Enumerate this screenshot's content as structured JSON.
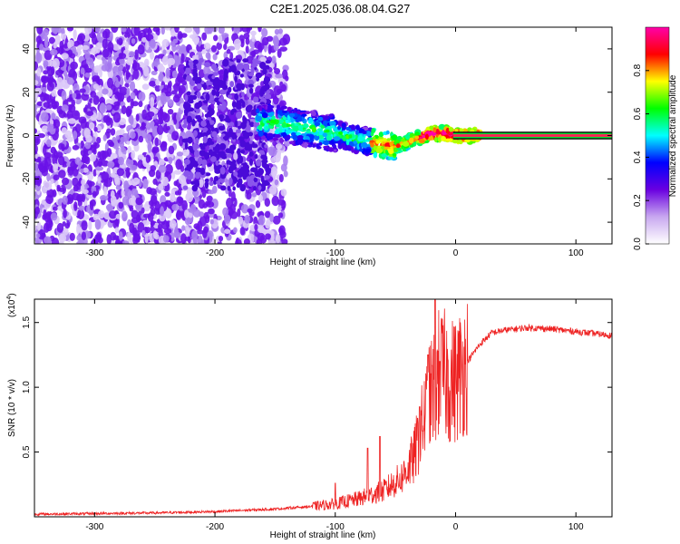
{
  "figure": {
    "title": "C2E1.2025.036.08.04.G27"
  },
  "chart_data": [
    {
      "type": "heatmap",
      "xlabel": "Height of straight line (km)",
      "ylabel": "Frequency (Hz)",
      "xlim": [
        -350,
        130
      ],
      "ylim": [
        -50,
        50
      ],
      "xticks": [
        -300,
        -200,
        -100,
        0,
        100
      ],
      "yticks": [
        -40,
        -20,
        0,
        20,
        40
      ],
      "colorbar": {
        "label": "Normalized spectral amplitude",
        "range": [
          0,
          1
        ],
        "ticks": [
          0.0,
          0.2,
          0.4,
          0.6,
          0.8
        ],
        "colormap": [
          "#ffffff",
          "#c8a8f0",
          "#6a00e0",
          "#0000ff",
          "#00ffff",
          "#00ff00",
          "#ffff00",
          "#ff0000",
          "#ff00aa"
        ]
      },
      "ridge": {
        "description_points_x": [
          -160,
          -140,
          -120,
          -100,
          -80,
          -60,
          -50,
          -40,
          -30,
          -20,
          -10,
          0,
          130
        ],
        "description_points_y": [
          6,
          5,
          3,
          1,
          -2,
          -4,
          -5,
          -3,
          -1,
          1,
          1,
          0,
          0
        ]
      }
    },
    {
      "type": "line",
      "xlabel": "Height of straight line (km)",
      "ylabel": "SNR (10 * v/v)",
      "yscale_label": "(x10",
      "yscale_exp": "4",
      "xlim": [
        -350,
        130
      ],
      "ylim": [
        0,
        1.68
      ],
      "xticks": [
        -300,
        -200,
        -100,
        0,
        100
      ],
      "yticks": [
        0.5,
        1.0,
        1.5
      ],
      "ytick_labels": [
        "0.5",
        "1.0",
        "1.5"
      ],
      "series": [
        {
          "color": "#ee2222",
          "envelope_x": [
            -350,
            -250,
            -200,
            -150,
            -120,
            -100,
            -80,
            -60,
            -45,
            -35,
            -28,
            -22,
            -18,
            -14,
            -10,
            -5,
            0,
            10,
            20,
            30,
            40,
            60,
            80,
            100,
            130
          ],
          "envelope_y": [
            0.02,
            0.03,
            0.04,
            0.06,
            0.08,
            0.1,
            0.14,
            0.2,
            0.3,
            0.45,
            0.7,
            0.9,
            1.0,
            1.1,
            1.1,
            1.05,
            1.05,
            1.2,
            1.33,
            1.42,
            1.44,
            1.46,
            1.45,
            1.43,
            1.4
          ],
          "spikes": [
            {
              "x": -100,
              "y": 0.26
            },
            {
              "x": -73,
              "y": 0.53
            },
            {
              "x": -63,
              "y": 0.62
            },
            {
              "x": -30,
              "y": 0.85
            },
            {
              "x": -23,
              "y": 1.25
            },
            {
              "x": -17,
              "y": 1.68
            },
            {
              "x": -13,
              "y": 1.2
            }
          ]
        }
      ]
    }
  ]
}
